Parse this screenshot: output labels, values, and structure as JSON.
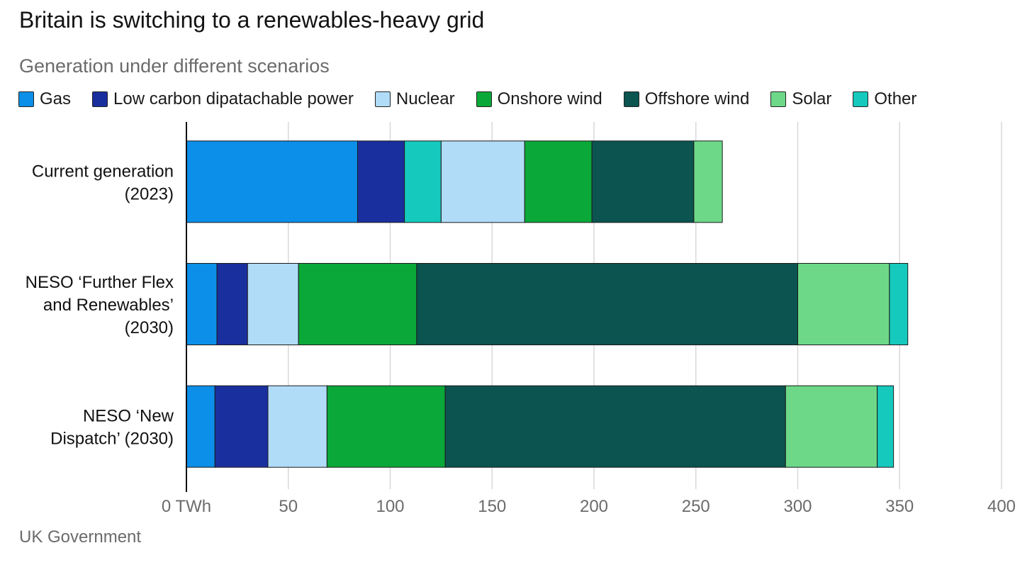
{
  "title": "Britain is switching to a renewables-heavy grid",
  "subtitle": "Generation under different scenarios",
  "source": "UK Government",
  "chart_data": {
    "type": "bar",
    "orientation": "horizontal",
    "stacked": true,
    "categories": [
      [
        "Current generation",
        "(2023)"
      ],
      [
        "NESO ‘Further Flex",
        "and Renewables’",
        "(2030)"
      ],
      [
        "NESO ‘New",
        "Dispatch’ (2030)"
      ]
    ],
    "series": [
      {
        "name": "Gas",
        "color": "#0b8fe8",
        "values": [
          84,
          15,
          14
        ]
      },
      {
        "name": "Low carbon dipatachable power",
        "color": "#1a2f9e",
        "values": [
          23,
          15,
          26
        ]
      },
      {
        "name": "Other",
        "color": "#15c9bd",
        "values": [
          18,
          0,
          0
        ]
      },
      {
        "name": "Nuclear",
        "color": "#b0dcf8",
        "values": [
          41,
          25,
          29
        ]
      },
      {
        "name": "Onshore wind",
        "color": "#0aa838",
        "values": [
          33,
          58,
          58
        ]
      },
      {
        "name": "Offshore wind",
        "color": "#0b5450",
        "values": [
          50,
          187,
          167
        ]
      },
      {
        "name": "Solar",
        "color": "#6cd888",
        "values": [
          14,
          45,
          45
        ]
      },
      {
        "name": "Other",
        "color": "#15c9bd",
        "values": [
          0,
          9,
          8
        ]
      }
    ],
    "legend": [
      {
        "name": "Gas",
        "color": "#0b8fe8"
      },
      {
        "name": "Low carbon dipatachable power",
        "color": "#1a2f9e"
      },
      {
        "name": "Nuclear",
        "color": "#b0dcf8"
      },
      {
        "name": "Onshore wind",
        "color": "#0aa838"
      },
      {
        "name": "Offshore wind",
        "color": "#0b5450"
      },
      {
        "name": "Solar",
        "color": "#6cd888"
      },
      {
        "name": "Other",
        "color": "#15c9bd"
      }
    ],
    "x_ticks": [
      0,
      50,
      100,
      150,
      200,
      250,
      300,
      350,
      400
    ],
    "x_tick_labels": [
      "0 TWh",
      "50",
      "100",
      "150",
      "200",
      "250",
      "300",
      "350",
      "400"
    ],
    "xlim": [
      0,
      400
    ],
    "grid": true,
    "legend_position": "top"
  }
}
